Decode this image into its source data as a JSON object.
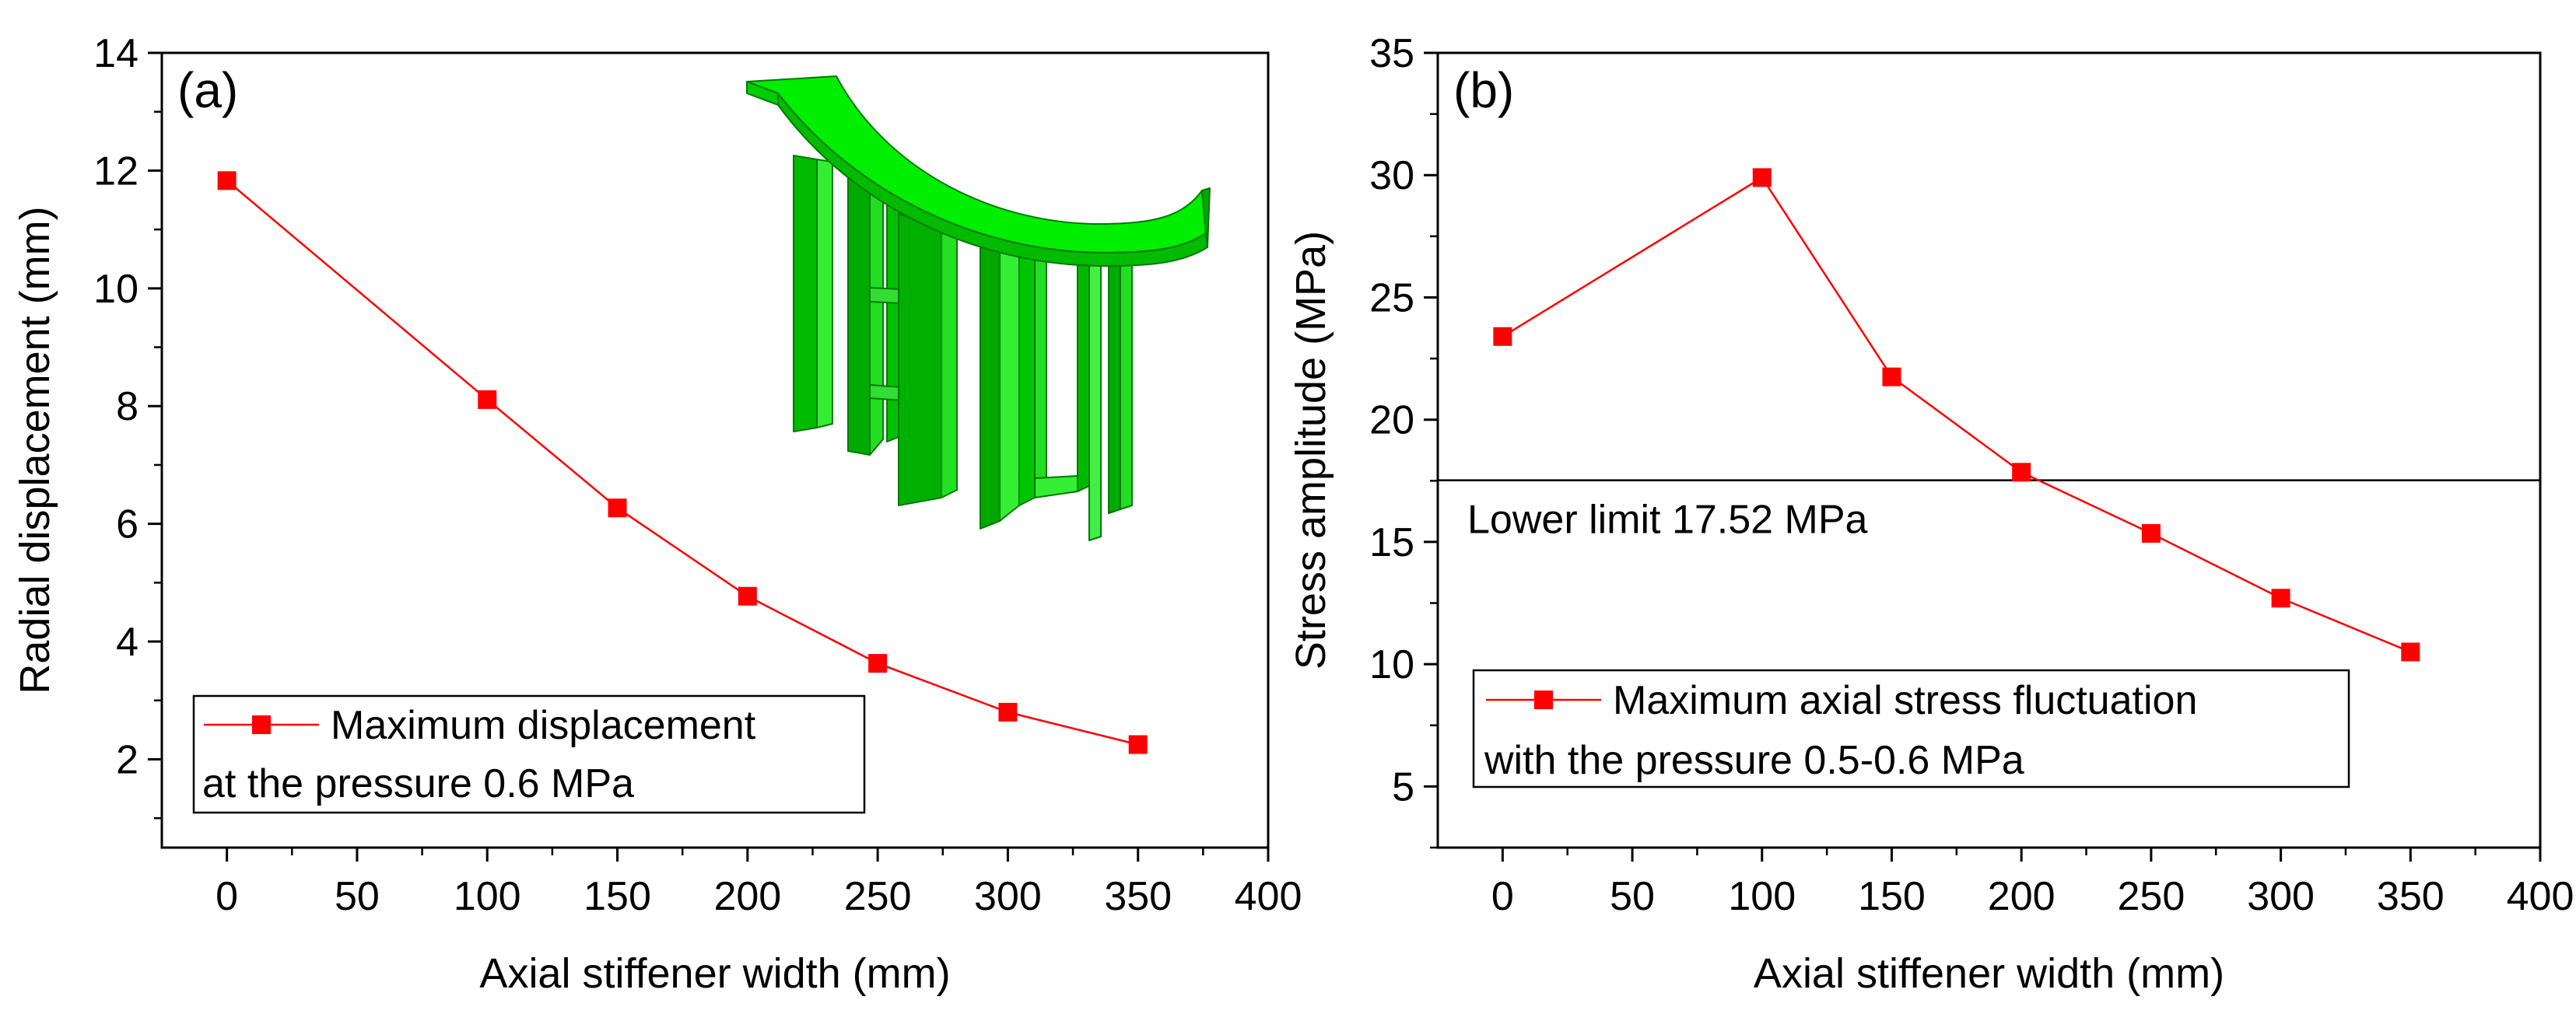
{
  "chart_data": [
    {
      "type": "line",
      "panel_label": "(a)",
      "xlabel": "Axial stiffener width (mm)",
      "ylabel": "Radial displacement (mm)",
      "xlim": [
        -25,
        400
      ],
      "ylim": [
        0.5,
        14
      ],
      "xticks": [
        0,
        50,
        100,
        150,
        200,
        250,
        300,
        350,
        400
      ],
      "yticks": [
        2,
        4,
        6,
        8,
        10,
        12,
        14
      ],
      "series": [
        {
          "name": "Maximum displacement at the pressure 0.6 MPa",
          "color": "#ff0000",
          "marker": "square",
          "x": [
            0,
            100,
            150,
            200,
            250,
            300,
            350
          ],
          "y": [
            11.83,
            8.11,
            6.27,
            4.77,
            3.63,
            2.8,
            2.25
          ]
        }
      ],
      "legend": {
        "position": "bottom-left",
        "lines": [
          "Maximum displacement",
          "at the pressure 0.6 MPa"
        ]
      },
      "inset": {
        "description": "green 3D stiffened arc segment",
        "color": "#00ee00"
      }
    },
    {
      "type": "line",
      "panel_label": "(b)",
      "xlabel": "Axial stiffener width (mm)",
      "ylabel": "Stress amplitude (MPa)",
      "xlim": [
        -25,
        400
      ],
      "ylim": [
        2.5,
        35
      ],
      "xticks": [
        0,
        50,
        100,
        150,
        200,
        250,
        300,
        350,
        400
      ],
      "yticks": [
        5,
        10,
        15,
        20,
        25,
        30,
        35
      ],
      "series": [
        {
          "name": "Maximum axial stress fluctuation with the pressure 0.5-0.6 MPa",
          "color": "#ff0000",
          "marker": "square",
          "x": [
            0,
            100,
            150,
            200,
            250,
            300,
            350
          ],
          "y": [
            23.4,
            29.9,
            21.75,
            17.85,
            15.35,
            12.7,
            10.5
          ]
        }
      ],
      "reference_line": {
        "y": 17.52,
        "label": "Lower limit 17.52 MPa"
      },
      "legend": {
        "position": "bottom-left",
        "lines": [
          "Maximum axial stress fluctuation",
          "with the pressure 0.5-0.6 MPa"
        ]
      }
    }
  ]
}
